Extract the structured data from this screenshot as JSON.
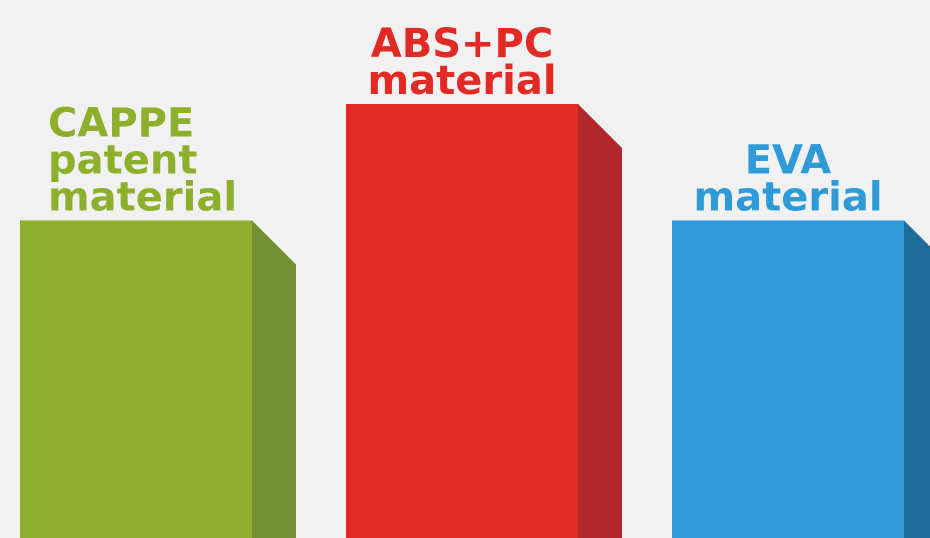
{
  "chart_data": {
    "type": "bar",
    "categories": [
      "CAPPE patent material",
      "ABS+PC material",
      "EVA material"
    ],
    "category_lines": [
      [
        "CAPPE",
        "patent",
        "material"
      ],
      [
        "ABS+PC",
        "material"
      ],
      [
        "EVA",
        "material"
      ]
    ],
    "values": [
      30,
      41,
      30
    ],
    "ylim": [
      0,
      41
    ],
    "grid": false,
    "legend": "none",
    "three_d": true,
    "colors": {
      "face": [
        "#8fb02e",
        "#e12a24",
        "#2e9bd8"
      ],
      "side": [
        "#738f34",
        "#b0282e",
        "#1f6d9a"
      ],
      "label": [
        "#8cb02c",
        "#e12a24",
        "#2e9bd8"
      ],
      "background": "#f1f1f1"
    }
  }
}
